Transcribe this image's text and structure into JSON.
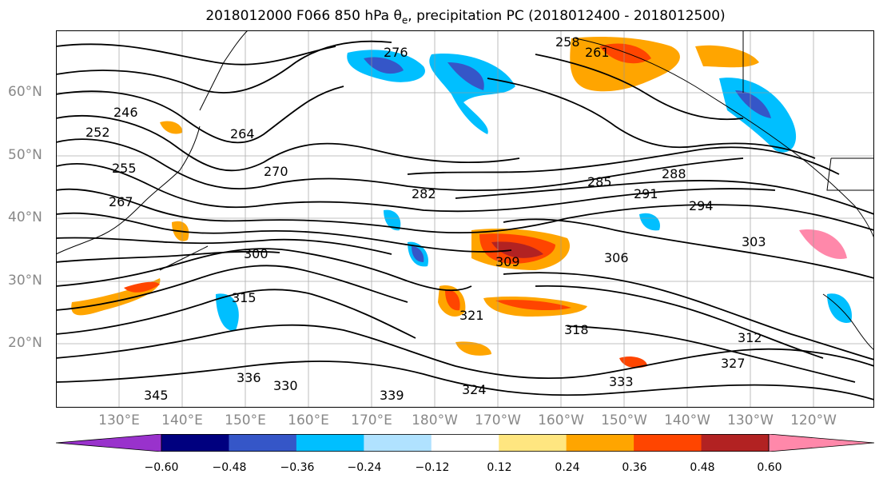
{
  "title": "2018012000 F066 850 hPa θ",
  "title_sub": "e",
  "title_rest": ", precipitation PC (2018012400 - 2018012500)",
  "map": {
    "lat_labels": [
      "60°N",
      "50°N",
      "40°N",
      "30°N",
      "20°N"
    ],
    "lon_labels": [
      "130°E",
      "140°E",
      "150°E",
      "160°E",
      "170°E",
      "180°W",
      "170°W",
      "160°W",
      "150°W",
      "140°W",
      "130°W",
      "120°W"
    ],
    "contour_labels": [
      "276",
      "258",
      "261",
      "246",
      "252",
      "255",
      "264",
      "267",
      "270",
      "282",
      "285",
      "288",
      "291",
      "294",
      "300",
      "303",
      "306",
      "309",
      "312",
      "315",
      "318",
      "321",
      "324",
      "327",
      "330",
      "333",
      "336",
      "339",
      "345"
    ]
  },
  "colorbar": {
    "colors": [
      "#9932cc",
      "#00007f",
      "#3556c8",
      "#00bfff",
      "#b0e2ff",
      "#ffffff",
      "#ffe680",
      "#ffa500",
      "#ff4500",
      "#b22222",
      "#ff88aa"
    ],
    "ticks": [
      "−0.60",
      "−0.48",
      "−0.36",
      "−0.24",
      "−0.12",
      "0.12",
      "0.24",
      "0.36",
      "0.48",
      "0.60"
    ]
  }
}
